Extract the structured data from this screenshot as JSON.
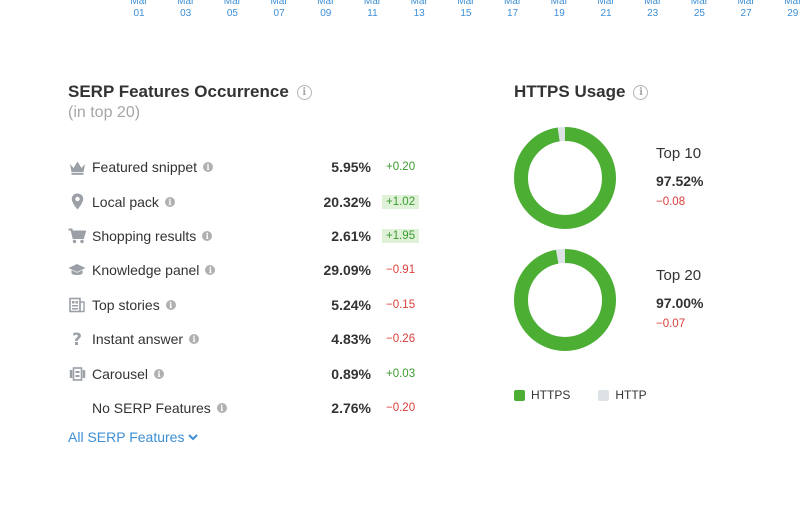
{
  "axis": {
    "ticks": [
      {
        "month": "Mar",
        "day": "01"
      },
      {
        "month": "Mar",
        "day": "03"
      },
      {
        "month": "Mar",
        "day": "05"
      },
      {
        "month": "Mar",
        "day": "07"
      },
      {
        "month": "Mar",
        "day": "09"
      },
      {
        "month": "Mar",
        "day": "11"
      },
      {
        "month": "Mar",
        "day": "13"
      },
      {
        "month": "Mar",
        "day": "15"
      },
      {
        "month": "Mar",
        "day": "17"
      },
      {
        "month": "Mar",
        "day": "19"
      },
      {
        "month": "Mar",
        "day": "21"
      },
      {
        "month": "Mar",
        "day": "23"
      },
      {
        "month": "Mar",
        "day": "25"
      },
      {
        "month": "Mar",
        "day": "27"
      },
      {
        "month": "Mar",
        "day": "29"
      }
    ]
  },
  "serp": {
    "title": "SERP Features Occurrence",
    "subtitle": "(in top 20)",
    "info_glyph": "i",
    "rows": [
      {
        "icon": "crown-icon",
        "label": "Featured snippet",
        "value": "5.95%",
        "change": "+0.20",
        "trend": "pos",
        "highlight": false
      },
      {
        "icon": "map-pin-icon",
        "label": "Local pack",
        "value": "20.32%",
        "change": "+1.02",
        "trend": "pos",
        "highlight": true
      },
      {
        "icon": "cart-icon",
        "label": "Shopping results",
        "value": "2.61%",
        "change": "+1.95",
        "trend": "pos",
        "highlight": true
      },
      {
        "icon": "graduation-cap-icon",
        "label": "Knowledge panel",
        "value": "29.09%",
        "change": "−0.91",
        "trend": "neg",
        "highlight": false
      },
      {
        "icon": "news-icon",
        "label": "Top stories",
        "value": "5.24%",
        "change": "−0.15",
        "trend": "neg",
        "highlight": false
      },
      {
        "icon": "question-icon",
        "label": "Instant answer",
        "value": "4.83%",
        "change": "−0.26",
        "trend": "neg",
        "highlight": false
      },
      {
        "icon": "carousel-icon",
        "label": "Carousel",
        "value": "0.89%",
        "change": "+0.03",
        "trend": "pos",
        "highlight": false
      },
      {
        "icon": "",
        "label": "No SERP Features",
        "value": "2.76%",
        "change": "−0.20",
        "trend": "neg",
        "highlight": false
      }
    ],
    "all_link": "All SERP Features"
  },
  "https": {
    "title": "HTTPS Usage",
    "donuts": [
      {
        "label": "Top 10",
        "value": "97.52%",
        "change": "−0.08",
        "https_fraction": 0.9752
      },
      {
        "label": "Top 20",
        "value": "97.00%",
        "change": "−0.07",
        "https_fraction": 0.97
      }
    ],
    "legend": [
      {
        "label": "HTTPS",
        "color": "#4caf34"
      },
      {
        "label": "HTTP",
        "color": "#dde2e5"
      }
    ]
  },
  "colors": {
    "accent": "#3d8fd6",
    "positive": "#3a9a2f",
    "negative": "#d9403b",
    "https": "#4caf34",
    "http": "#dde2e5"
  }
}
